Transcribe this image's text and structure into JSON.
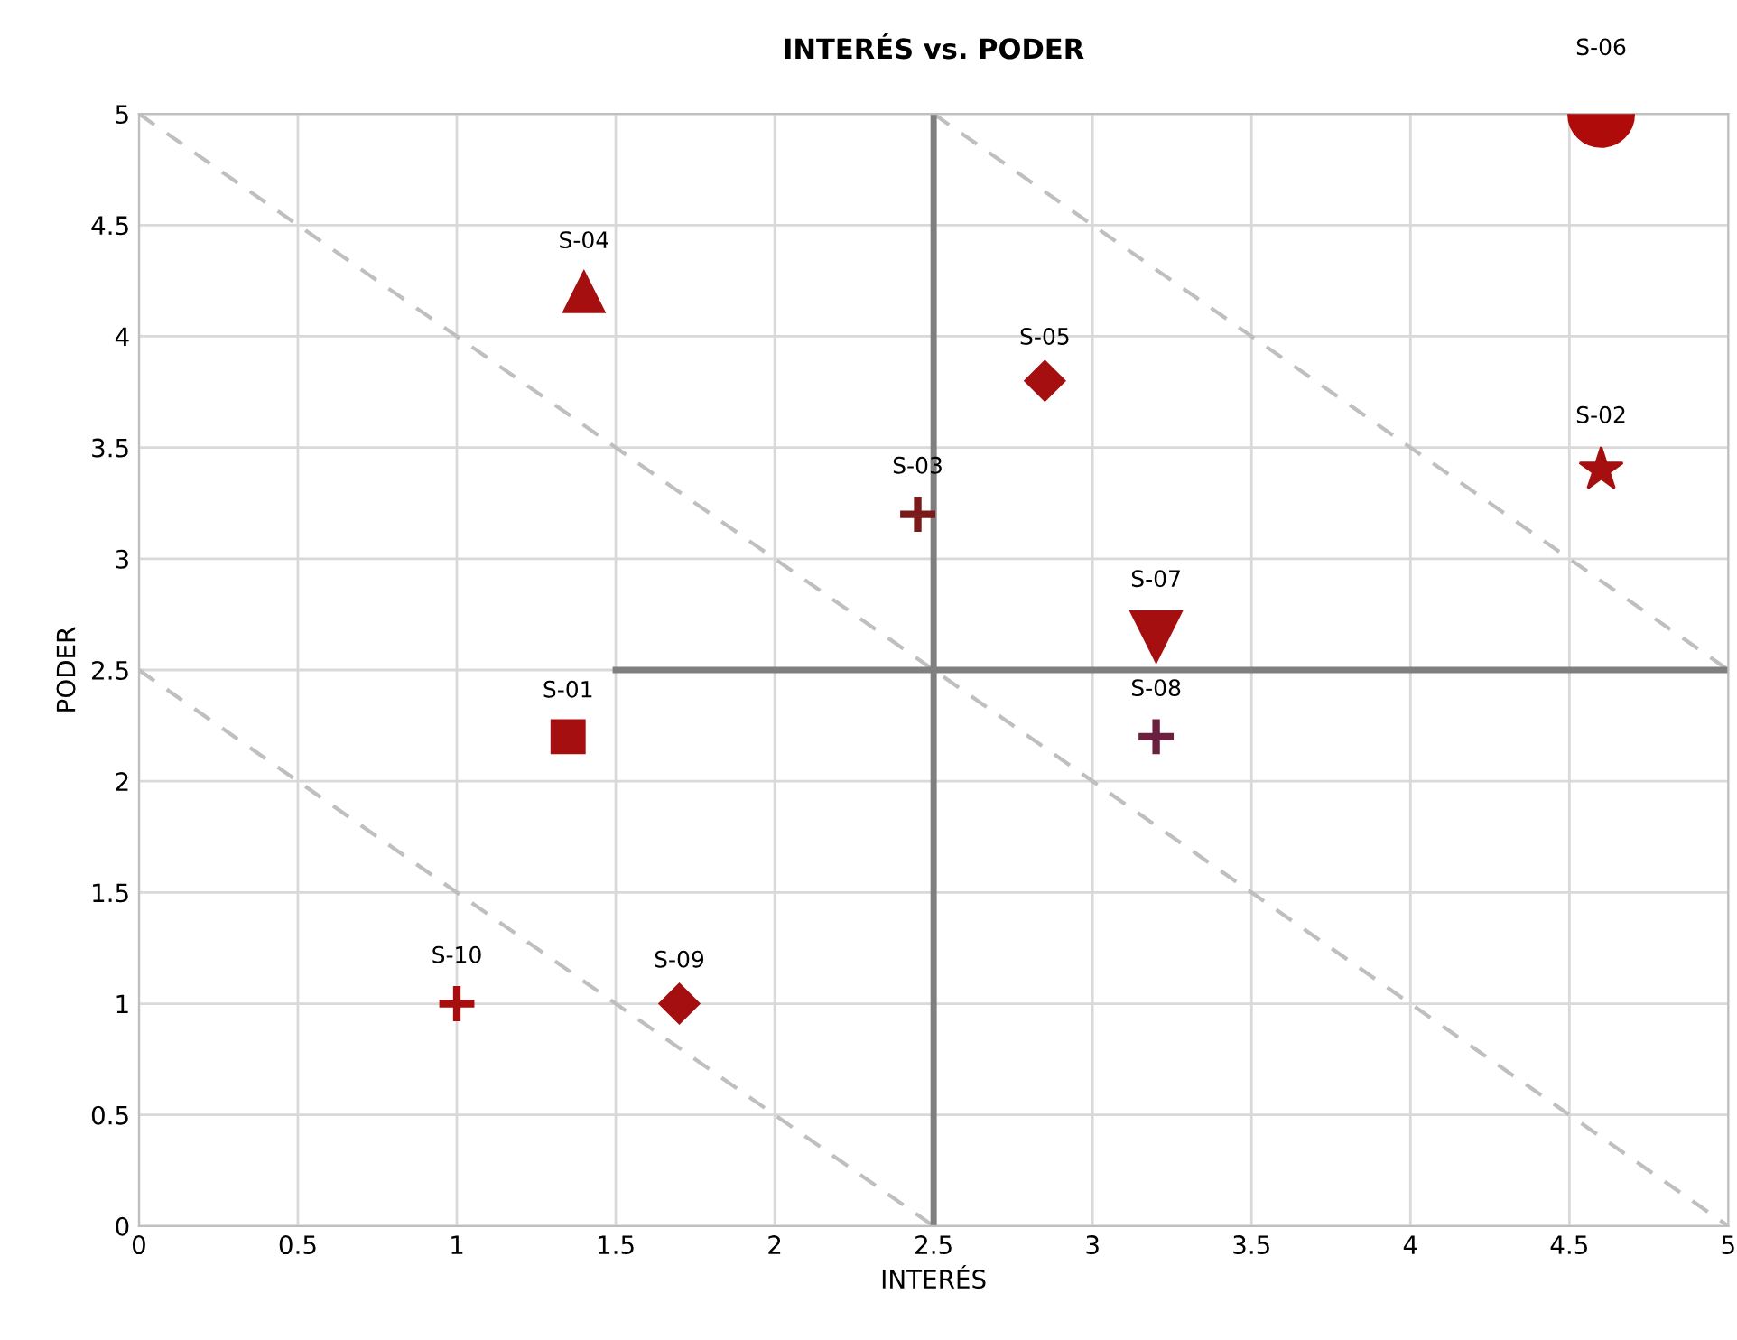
{
  "chart_data": {
    "type": "scatter",
    "title": "INTERÉS vs. PODER",
    "xlabel": "INTERÉS",
    "ylabel": "PODER",
    "xlim": [
      0,
      5
    ],
    "ylim": [
      0,
      5
    ],
    "xticks": [
      0,
      0.5,
      1,
      1.5,
      2,
      2.5,
      3,
      3.5,
      4,
      4.5,
      5
    ],
    "yticks": [
      0,
      0.5,
      1,
      1.5,
      2,
      2.5,
      3,
      3.5,
      4,
      4.5,
      5
    ],
    "grid": true,
    "legend": false,
    "series": [
      {
        "name": "S-01",
        "x": [
          1.35
        ],
        "values": [
          2.2
        ],
        "color": "#a50f0f",
        "marker": "square"
      },
      {
        "name": "S-02",
        "x": [
          4.6
        ],
        "values": [
          3.4
        ],
        "color": "#a50f0f",
        "marker": "star"
      },
      {
        "name": "S-03",
        "x": [
          2.45
        ],
        "values": [
          3.2
        ],
        "color": "#7a1a1a",
        "marker": "cross"
      },
      {
        "name": "S-04",
        "x": [
          1.4
        ],
        "values": [
          4.2
        ],
        "color": "#a50f0f",
        "marker": "triangle"
      },
      {
        "name": "S-05",
        "x": [
          2.85
        ],
        "values": [
          3.8
        ],
        "color": "#a50f0f",
        "marker": "diamond"
      },
      {
        "name": "S-06",
        "x": [
          4.6
        ],
        "values": [
          5.0
        ],
        "color": "#b00b0b",
        "marker": "circle"
      },
      {
        "name": "S-07",
        "x": [
          3.2
        ],
        "values": [
          2.65
        ],
        "color": "#a50f0f",
        "marker": "triangle_down"
      },
      {
        "name": "S-08",
        "x": [
          3.2
        ],
        "values": [
          2.2
        ],
        "color": "#6b2040",
        "marker": "cross"
      },
      {
        "name": "S-09",
        "x": [
          1.7
        ],
        "values": [
          1.0
        ],
        "color": "#a50f0f",
        "marker": "diamond"
      },
      {
        "name": "S-10",
        "x": [
          1.0
        ],
        "values": [
          1.0
        ],
        "color": "#a50f0f",
        "marker": "cross"
      },
      {
        "type": "line",
        "x": [
          0,
          2.5
        ],
        "values": [
          2.5,
          0
        ],
        "color": "#bfbfbf",
        "line_style": "dashed",
        "marker": "none"
      },
      {
        "type": "line",
        "x": [
          0,
          5
        ],
        "values": [
          5,
          0
        ],
        "color": "#bfbfbf",
        "line_style": "dashed",
        "marker": "none"
      },
      {
        "type": "line",
        "x": [
          2.5,
          5
        ],
        "values": [
          5,
          2.5
        ],
        "color": "#bfbfbf",
        "line_style": "dashed",
        "marker": "none"
      },
      {
        "type": "line",
        "x": [
          2.5,
          2.5
        ],
        "values": [
          0,
          5
        ],
        "color": "#7f7f7f",
        "line_style": "solid",
        "marker": "none"
      },
      {
        "type": "line",
        "x": [
          1.5,
          5
        ],
        "values": [
          2.5,
          2.5
        ],
        "color": "#7f7f7f",
        "line_style": "solid",
        "marker": "none"
      }
    ]
  }
}
